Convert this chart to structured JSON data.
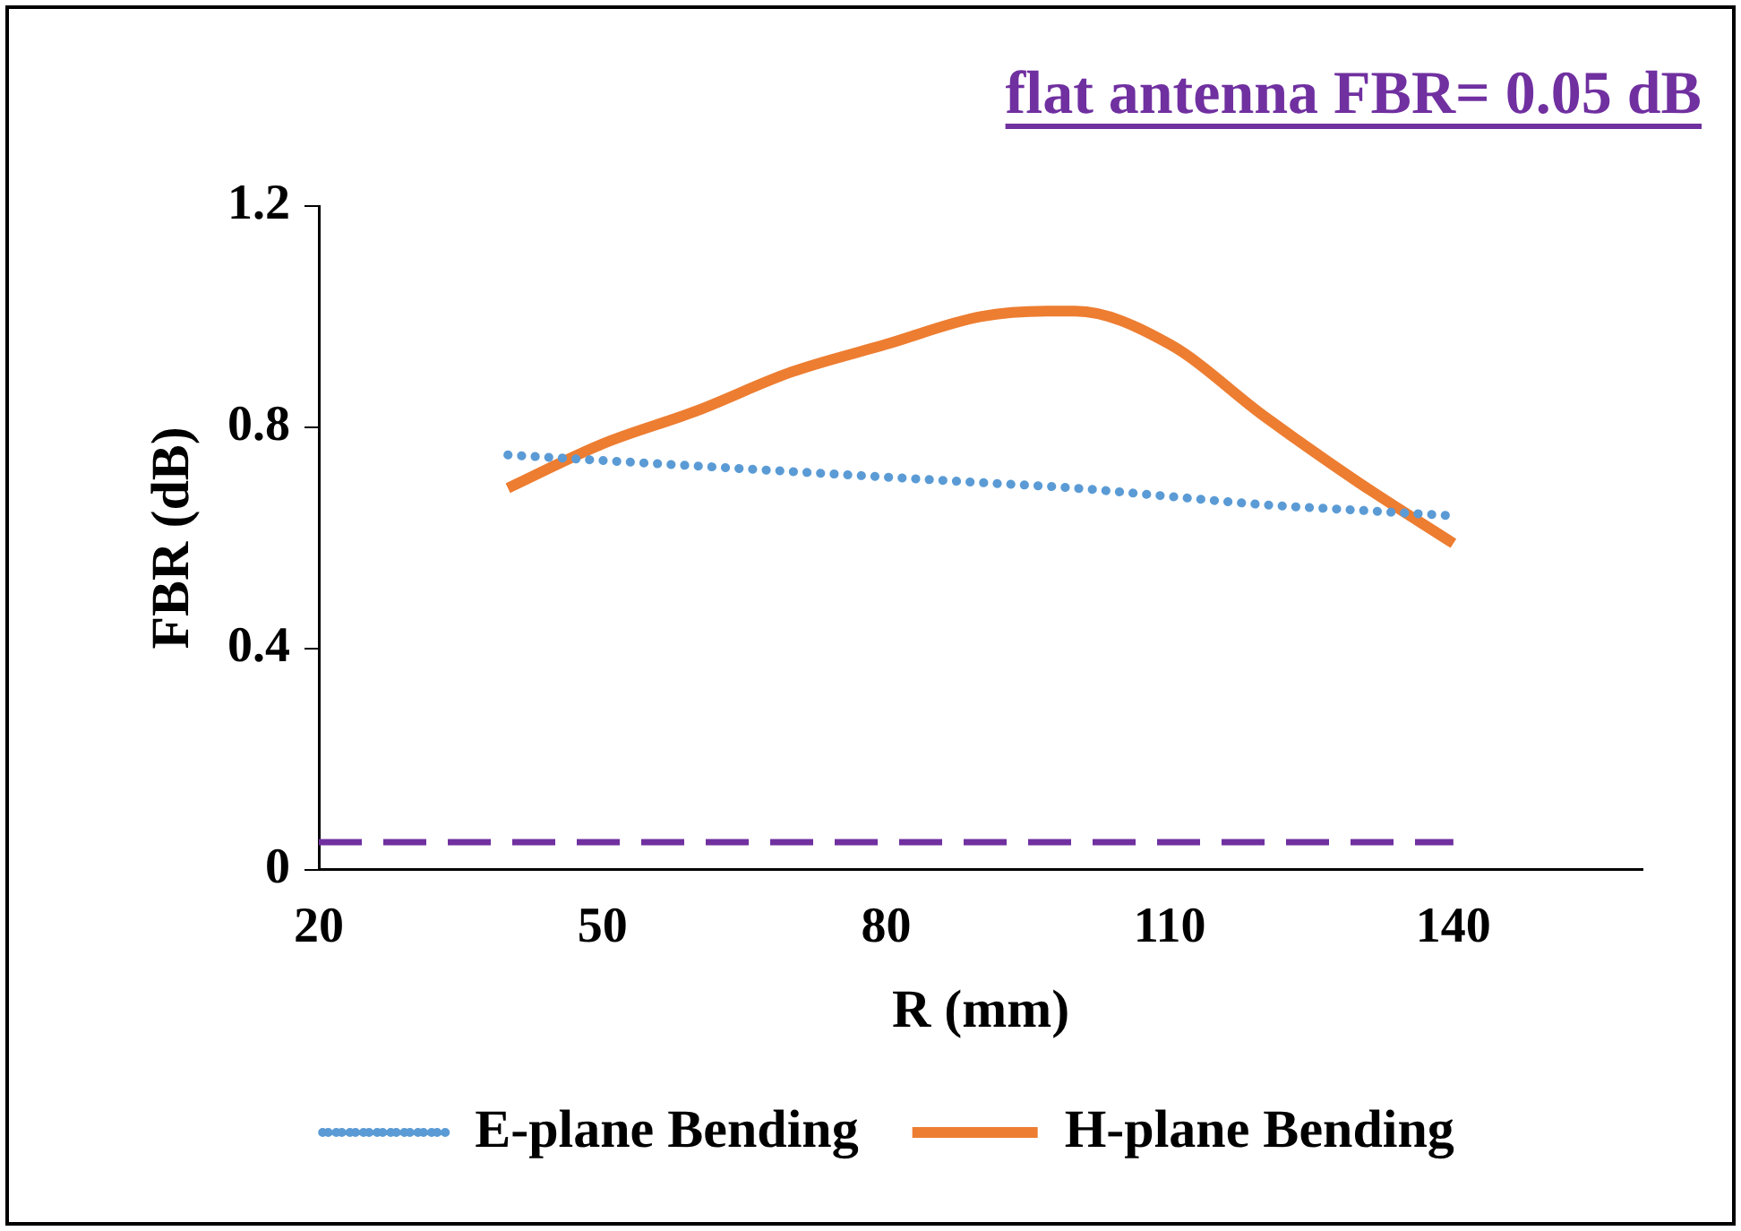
{
  "chart_data": {
    "type": "line",
    "title": "flat antenna FBR= 0.05 dB",
    "xlabel": "R (mm)",
    "ylabel": "FBR (dB)",
    "xlim": [
      20,
      160
    ],
    "xticks": [
      20,
      50,
      80,
      110,
      140
    ],
    "ylim": [
      0,
      1.2
    ],
    "yticks": [
      0,
      0.4,
      0.8,
      1.2
    ],
    "grid": false,
    "legend": "bottom",
    "marker": "none",
    "series": [
      {
        "name": "E-plane Bending",
        "color": "#5b9bd5",
        "line_style": "dotted",
        "x": [
          40,
          50,
          60,
          70,
          80,
          90,
          100,
          110,
          120,
          130,
          140
        ],
        "values": [
          0.75,
          0.74,
          0.73,
          0.72,
          0.71,
          0.7,
          0.69,
          0.675,
          0.66,
          0.65,
          0.64
        ]
      },
      {
        "name": "H-plane Bending",
        "color": "#ed7d31",
        "line_style": "solid",
        "x": [
          40,
          50,
          60,
          70,
          80,
          90,
          97,
          100,
          110,
          120,
          130,
          140
        ],
        "values": [
          0.69,
          0.77,
          0.83,
          0.9,
          0.95,
          1.0,
          1.01,
          1.01,
          0.95,
          0.82,
          0.7,
          0.59
        ]
      },
      {
        "color": "#7030a0",
        "line_style": "dashed",
        "x": [
          20,
          140
        ],
        "values": [
          0.05,
          0.05
        ]
      }
    ]
  }
}
